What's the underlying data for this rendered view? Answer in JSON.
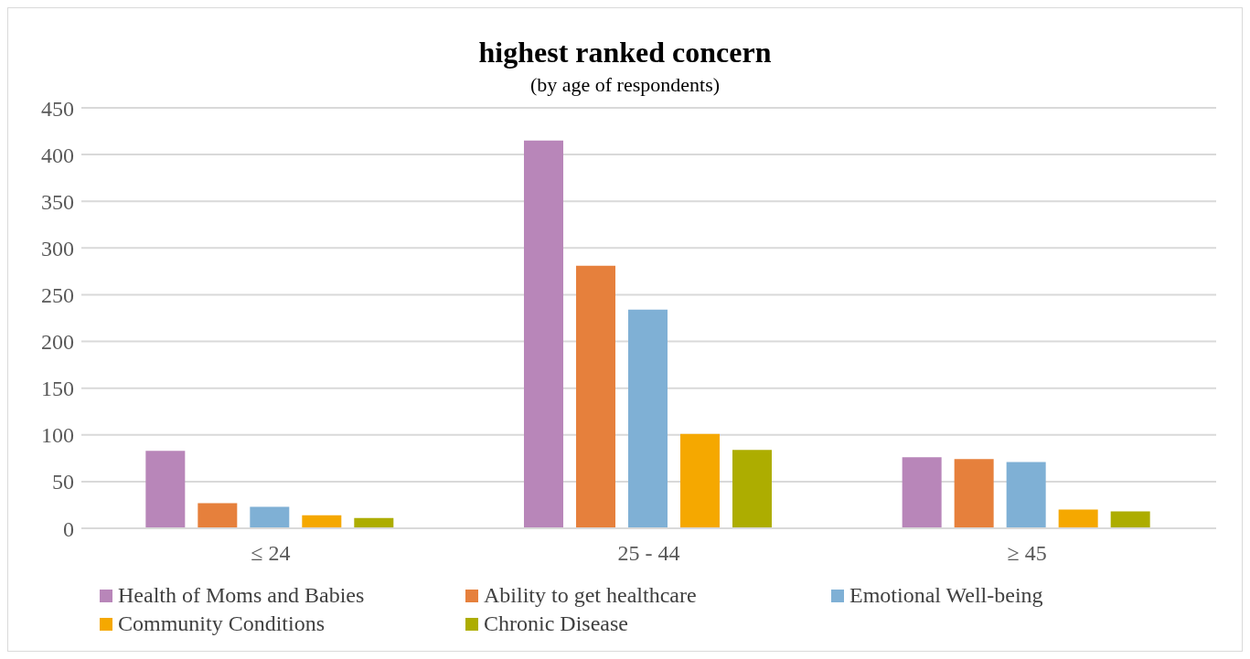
{
  "chart_data": {
    "type": "bar",
    "title": "highest ranked concern",
    "subtitle": "(by age of respondents)",
    "categories": [
      "≤ 24",
      "25 - 44",
      "≥ 45"
    ],
    "series": [
      {
        "name": "Health of Moms and Babies",
        "color": "#b886b9",
        "values": [
          83,
          415,
          76
        ]
      },
      {
        "name": "Ability to get healthcare",
        "color": "#e6803c",
        "values": [
          27,
          281,
          74
        ]
      },
      {
        "name": "Emotional Well-being",
        "color": "#7fb0d5",
        "values": [
          23,
          234,
          71
        ]
      },
      {
        "name": "Community Conditions",
        "color": "#f5a800",
        "values": [
          14,
          101,
          20
        ]
      },
      {
        "name": "Chronic Disease",
        "color": "#adad00",
        "values": [
          11,
          84,
          18
        ]
      }
    ],
    "ylim": [
      0,
      450
    ],
    "yticks": [
      0,
      50,
      100,
      150,
      200,
      250,
      300,
      350,
      400,
      450
    ],
    "grid": "y",
    "legend": "bottom"
  }
}
